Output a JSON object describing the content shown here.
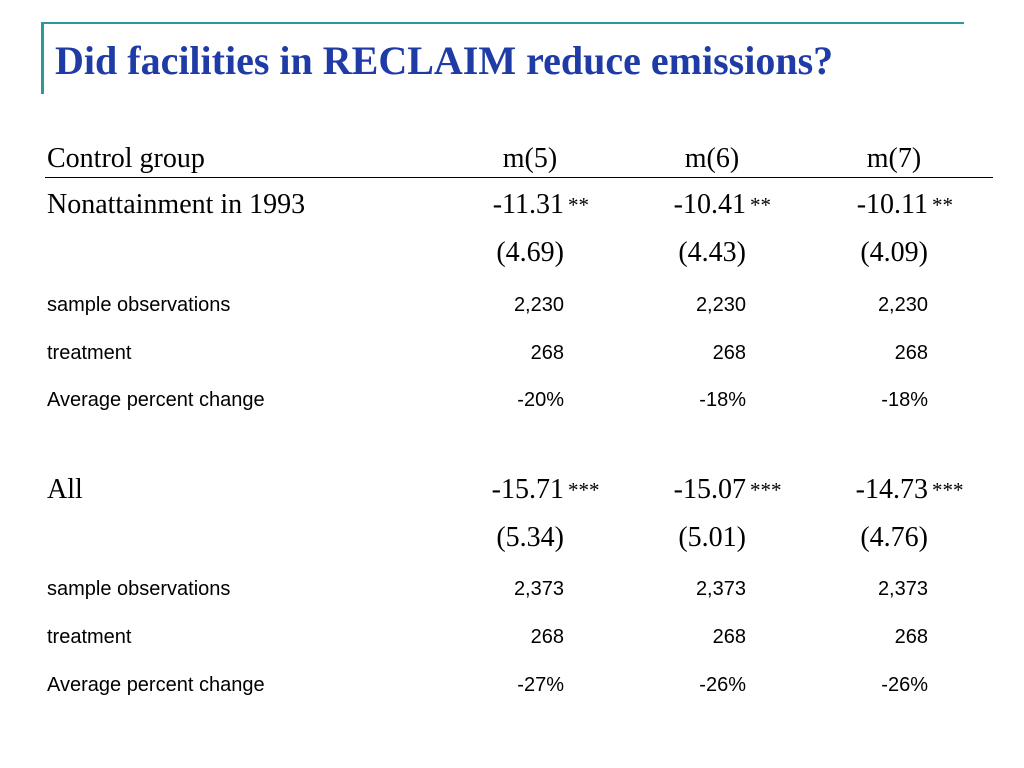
{
  "slide": {
    "title": "Did facilities in RECLAIM reduce emissions?",
    "accent_color": "#2a9a98",
    "title_color": "#1f3ba6"
  },
  "table": {
    "header": {
      "label": "Control group",
      "columns": [
        "m(5)",
        "m(6)",
        "m(7)"
      ]
    },
    "groups": [
      {
        "label": "Nonattainment in 1993",
        "coefficients": [
          "-11.31",
          "-10.41",
          "-10.11"
        ],
        "stars": [
          "**",
          "**",
          "**"
        ],
        "std_errors": [
          "(4.69)",
          "(4.43)",
          "(4.09)"
        ],
        "stats": [
          {
            "label": "sample observations",
            "values": [
              "2,230",
              "2,230",
              "2,230"
            ]
          },
          {
            "label": "treatment",
            "values": [
              "268",
              "268",
              "268"
            ]
          },
          {
            "label": "Average percent change",
            "values": [
              "-20%",
              "-18%",
              "-18%"
            ]
          }
        ]
      },
      {
        "label": "All",
        "coefficients": [
          "-15.71",
          "-15.07",
          "-14.73"
        ],
        "stars": [
          "***",
          "***",
          "***"
        ],
        "std_errors": [
          "(5.34)",
          "(5.01)",
          "(4.76)"
        ],
        "stats": [
          {
            "label": "sample observations",
            "values": [
              "2,373",
              "2,373",
              "2,373"
            ]
          },
          {
            "label": "treatment",
            "values": [
              "268",
              "268",
              "268"
            ]
          },
          {
            "label": "Average percent change",
            "values": [
              "-27%",
              "-26%",
              "-26%"
            ]
          }
        ]
      }
    ]
  }
}
